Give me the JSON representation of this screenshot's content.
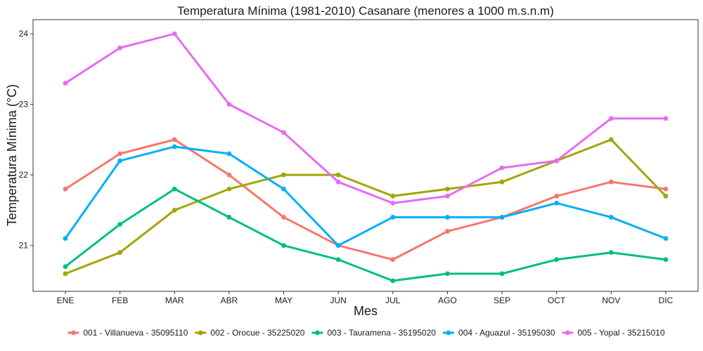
{
  "chart_data": {
    "type": "line",
    "title": "Temperatura Mínima (1981-2010) Casanare (menores a 1000 m.s.n.m)",
    "xlabel": "Mes",
    "ylabel": "Temperatura Mínima (°C)",
    "categories": [
      "ENE",
      "FEB",
      "MAR",
      "ABR",
      "MAY",
      "JUN",
      "JUL",
      "AGO",
      "SEP",
      "OCT",
      "NOV",
      "DIC"
    ],
    "yticks": [
      21,
      22,
      23,
      24
    ],
    "ylim": [
      20.35,
      24.2
    ],
    "grid": false,
    "legend_position": "bottom",
    "series": [
      {
        "name": "001 - Villanueva - 35095110",
        "color": "#F8766D",
        "values": [
          21.8,
          22.3,
          22.5,
          22.0,
          21.4,
          21.0,
          20.8,
          21.2,
          21.4,
          21.7,
          21.9,
          21.8
        ]
      },
      {
        "name": "002 - Orocue - 35225020",
        "color": "#A3A500",
        "values": [
          20.6,
          20.9,
          21.5,
          21.8,
          22.0,
          22.0,
          21.7,
          21.8,
          21.9,
          22.2,
          22.5,
          21.7
        ]
      },
      {
        "name": "003 - Tauramena - 35195020",
        "color": "#00BF7D",
        "values": [
          20.7,
          21.3,
          21.8,
          21.4,
          21.0,
          20.8,
          20.5,
          20.6,
          20.6,
          20.8,
          20.9,
          20.8
        ]
      },
      {
        "name": "004 - Aguazul - 35195030",
        "color": "#00B0F6",
        "values": [
          21.1,
          22.2,
          22.4,
          22.3,
          21.8,
          21.0,
          21.4,
          21.4,
          21.4,
          21.6,
          21.4,
          21.1
        ]
      },
      {
        "name": "005 - Yopal - 35215010",
        "color": "#E76BF3",
        "values": [
          23.3,
          23.8,
          24.0,
          23.0,
          22.6,
          21.9,
          21.6,
          21.7,
          22.1,
          22.2,
          22.8,
          22.8
        ]
      }
    ]
  }
}
